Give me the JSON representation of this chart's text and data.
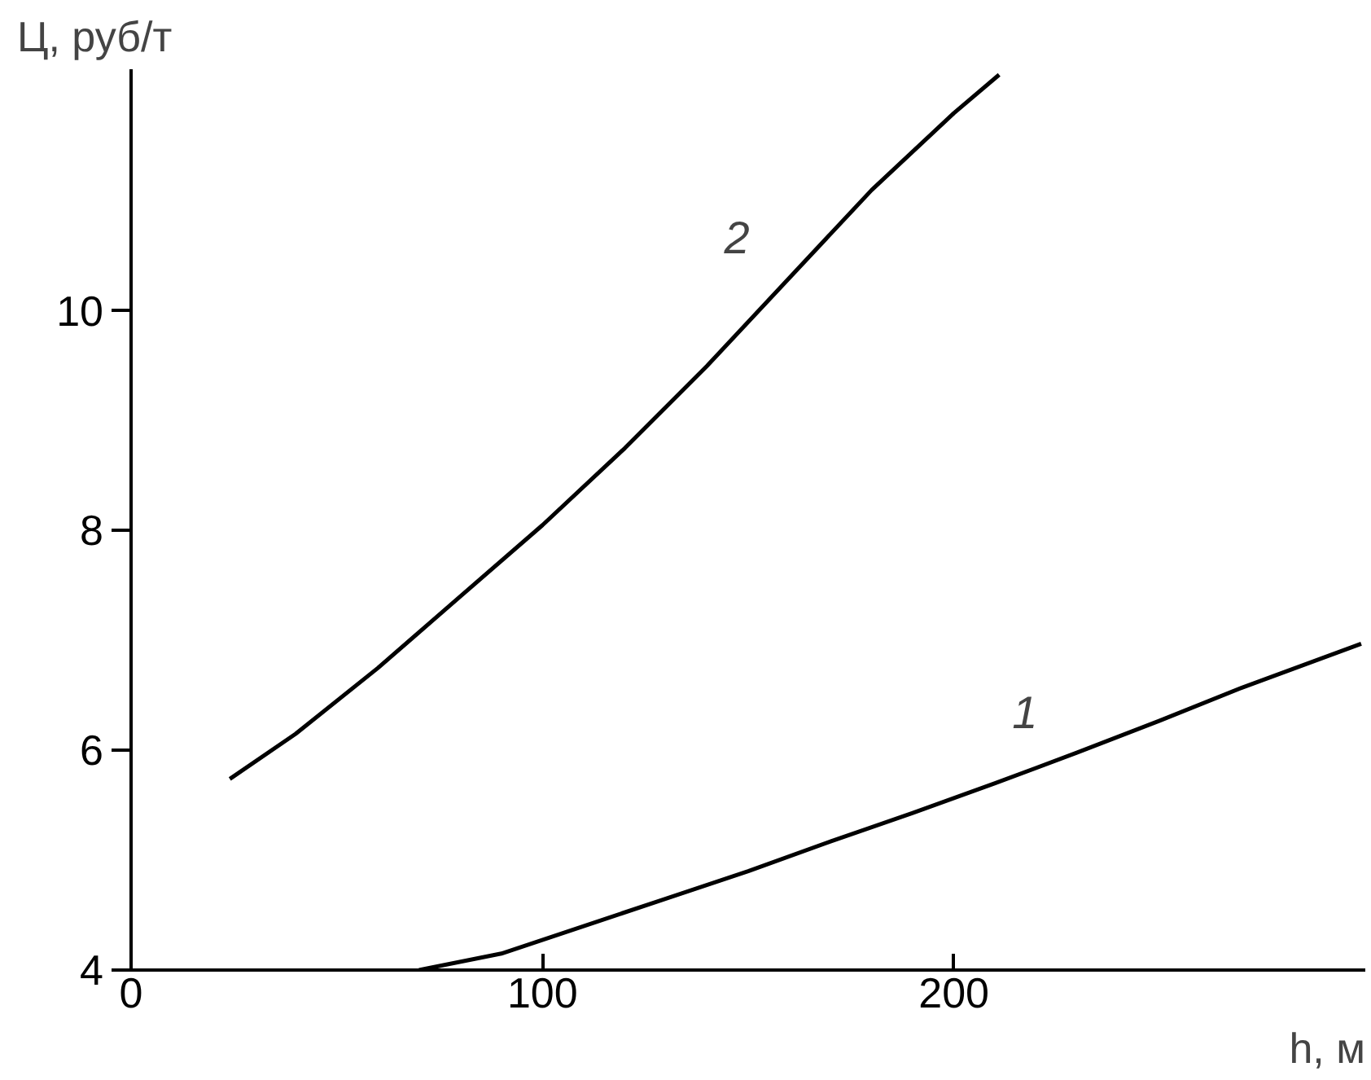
{
  "chart_data": {
    "type": "line",
    "xlabel": "h, м",
    "ylabel": "Ц, руб/т",
    "xlim": [
      0,
      300
    ],
    "ylim": [
      4,
      12.2
    ],
    "xticks": [
      0,
      100,
      200
    ],
    "yticks": [
      4,
      6,
      8,
      10
    ],
    "grid": false,
    "legend": false,
    "marker": "none",
    "line_style": "solid",
    "series": [
      {
        "name": "1",
        "color": "#000000",
        "x": [
          70,
          90,
          110,
          130,
          150,
          170,
          190,
          210,
          230,
          250,
          270,
          299
        ],
        "values": [
          4,
          4.15,
          4.4,
          4.65,
          4.9,
          5.17,
          5.43,
          5.7,
          5.98,
          6.27,
          6.57,
          6.97
        ]
      },
      {
        "name": "2",
        "color": "#000000",
        "x": [
          24,
          40,
          60,
          80,
          100,
          120,
          140,
          160,
          180,
          200,
          211
        ],
        "values": [
          5.74,
          6.15,
          6.75,
          7.4,
          8.05,
          8.75,
          9.5,
          10.3,
          11.1,
          11.8,
          12.15
        ]
      }
    ]
  }
}
